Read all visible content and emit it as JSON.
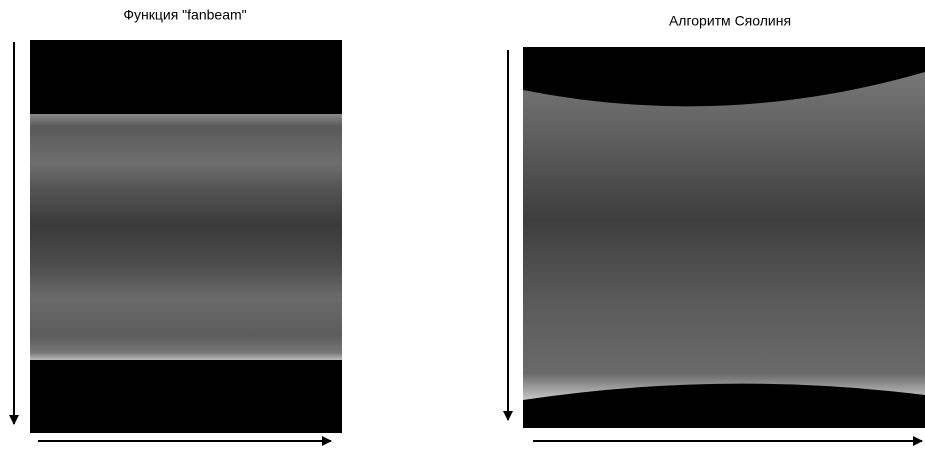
{
  "panels": [
    {
      "caption": "Функция \"fanbeam\""
    },
    {
      "caption": "Алгоритм Сяолиня"
    }
  ]
}
